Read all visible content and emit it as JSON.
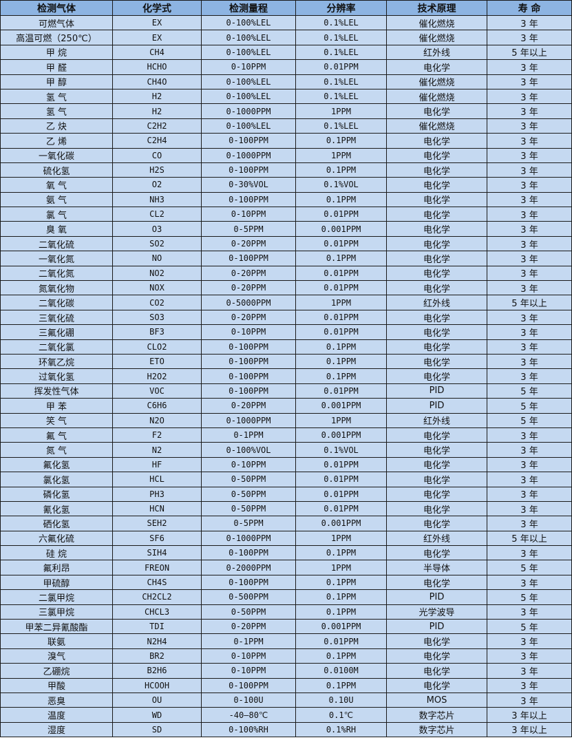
{
  "table": {
    "headers": [
      "检测气体",
      "化学式",
      "检测量程",
      "分辨率",
      "技术原理",
      "寿  命"
    ],
    "rows": [
      [
        "可燃气体",
        "EX",
        "0-100%LEL",
        "0.1%LEL",
        "催化燃烧",
        "3 年"
      ],
      [
        "高温可燃（250℃）",
        "EX",
        "0-100%LEL",
        "0.1%LEL",
        "催化燃烧",
        "3 年"
      ],
      [
        "甲 烷",
        "CH4",
        "0-100%LEL",
        "0.1%LEL",
        "红外线",
        "5 年以上"
      ],
      [
        "甲 醛",
        "HCHO",
        "0-10PPM",
        "0.01PPM",
        "电化学",
        "3 年"
      ],
      [
        "甲 醇",
        "CH4O",
        "0-100%LEL",
        "0.1%LEL",
        "催化燃烧",
        "3 年"
      ],
      [
        "氢 气",
        "H2",
        "0-100%LEL",
        "0.1%LEL",
        "催化燃烧",
        "3 年"
      ],
      [
        "氢 气",
        "H2",
        "0-1000PPM",
        "1PPM",
        "电化学",
        "3 年"
      ],
      [
        "乙 炔",
        "C2H2",
        "0-100%LEL",
        "0.1%LEL",
        "催化燃烧",
        "3 年"
      ],
      [
        "乙 烯",
        "C2H4",
        "0-100PPM",
        "0.1PPM",
        "电化学",
        "3 年"
      ],
      [
        "一氧化碳",
        "CO",
        "0-1000PPM",
        "1PPM",
        "电化学",
        "3 年"
      ],
      [
        "硫化氢",
        "H2S",
        "0-100PPM",
        "0.1PPM",
        "电化学",
        "3 年"
      ],
      [
        "氧 气",
        "O2",
        "0-30%VOL",
        "0.1%VOL",
        "电化学",
        "3 年"
      ],
      [
        "氨 气",
        "NH3",
        "0-100PPM",
        "0.1PPM",
        "电化学",
        "3 年"
      ],
      [
        "氯 气",
        "CL2",
        "0-10PPM",
        "0.01PPM",
        "电化学",
        "3 年"
      ],
      [
        "臭 氧",
        "O3",
        "0-5PPM",
        "0.001PPM",
        "电化学",
        "3 年"
      ],
      [
        "二氧化硫",
        "SO2",
        "0-20PPM",
        "0.01PPM",
        "电化学",
        "3 年"
      ],
      [
        "一氧化氮",
        "NO",
        "0-100PPM",
        "0.1PPM",
        "电化学",
        "3 年"
      ],
      [
        "二氧化氮",
        "NO2",
        "0-20PPM",
        "0.01PPM",
        "电化学",
        "3 年"
      ],
      [
        "氮氧化物",
        "NOX",
        "0-20PPM",
        "0.01PPM",
        "电化学",
        "3 年"
      ],
      [
        "二氧化碳",
        "CO2",
        "0-5000PPM",
        "1PPM",
        "红外线",
        "5 年以上"
      ],
      [
        "三氧化硫",
        "SO3",
        "0-20PPM",
        "0.01PPM",
        "电化学",
        "3 年"
      ],
      [
        "三氟化硼",
        "BF3",
        "0-10PPM",
        "0.01PPM",
        "电化学",
        "3 年"
      ],
      [
        "二氧化氯",
        "CLO2",
        "0-100PPM",
        "0.1PPM",
        "电化学",
        "3 年"
      ],
      [
        "环氧乙烷",
        "ETO",
        "0-100PPM",
        "0.1PPM",
        "电化学",
        "3 年"
      ],
      [
        "过氧化氢",
        "H2O2",
        "0-100PPM",
        "0.1PPM",
        "电化学",
        "3 年"
      ],
      [
        "挥发性气体",
        "VOC",
        "0-100PPM",
        "0.01PPM",
        "PID",
        "5 年"
      ],
      [
        "甲 苯",
        "C6H6",
        "0-20PPM",
        "0.001PPM",
        "PID",
        "5 年"
      ],
      [
        "笑 气",
        "N2O",
        "0-1000PPM",
        "1PPM",
        "红外线",
        "5 年"
      ],
      [
        "氟 气",
        "F2",
        "0-1PPM",
        "0.001PPM",
        "电化学",
        "3 年"
      ],
      [
        "氮 气",
        "N2",
        "0-100%VOL",
        "0.1%VOL",
        "电化学",
        "3 年"
      ],
      [
        "氟化氢",
        "HF",
        "0-10PPM",
        "0.01PPM",
        "电化学",
        "3 年"
      ],
      [
        "氯化氢",
        "HCL",
        "0-50PPM",
        "0.01PPM",
        "电化学",
        "3 年"
      ],
      [
        "磷化氢",
        "PH3",
        "0-50PPM",
        "0.01PPM",
        "电化学",
        "3 年"
      ],
      [
        "氰化氢",
        "HCN",
        "0-50PPM",
        "0.01PPM",
        "电化学",
        "3 年"
      ],
      [
        "硒化氢",
        "SEH2",
        "0-5PPM",
        "0.001PPM",
        "电化学",
        "3 年"
      ],
      [
        "六氟化硫",
        "SF6",
        "0-1000PPM",
        "1PPM",
        "红外线",
        "5 年以上"
      ],
      [
        "硅 烷",
        "SIH4",
        "0-100PPM",
        "0.1PPM",
        "电化学",
        "3 年"
      ],
      [
        "氟利昂",
        "FREON",
        "0-2000PPM",
        "1PPM",
        "半导体",
        "5 年"
      ],
      [
        "甲硫醇",
        "CH4S",
        "0-100PPM",
        "0.1PPM",
        "电化学",
        "3 年"
      ],
      [
        "二氯甲烷",
        "CH2CL2",
        "0-500PPM",
        "0.1PPM",
        "PID",
        "5 年"
      ],
      [
        "三氯甲烷",
        "CHCL3",
        "0-50PPM",
        "0.1PPM",
        "光学波导",
        "3 年"
      ],
      [
        "甲苯二异氰酸酯",
        "TDI",
        "0-20PPM",
        "0.001PPM",
        "PID",
        "5 年"
      ],
      [
        "联氨",
        "N2H4",
        "0-1PPM",
        "0.01PPM",
        "电化学",
        "3 年"
      ],
      [
        "溴气",
        "BR2",
        "0-10PPM",
        "0.1PPM",
        "电化学",
        "3 年"
      ],
      [
        "乙硼烷",
        "B2H6",
        "0-10PPM",
        "0.0100M",
        "电化学",
        "3 年"
      ],
      [
        "甲酸",
        "HCOOH",
        "0-100PPM",
        "0.1PPM",
        "电化学",
        "3 年"
      ],
      [
        "恶臭",
        "OU",
        "0-100U",
        "0.10U",
        "MOS",
        "3 年"
      ],
      [
        "温度",
        "WD",
        "-40—80℃",
        "0.1℃",
        "数字芯片",
        "3 年以上"
      ],
      [
        "湿度",
        "SD",
        "0-100%RH",
        "0.1%RH",
        "数字芯片",
        "3 年以上"
      ]
    ]
  },
  "colors": {
    "header_bg": "#8db4e2",
    "row_bg": "#c5d9f1",
    "border": "#1a1a1a"
  }
}
